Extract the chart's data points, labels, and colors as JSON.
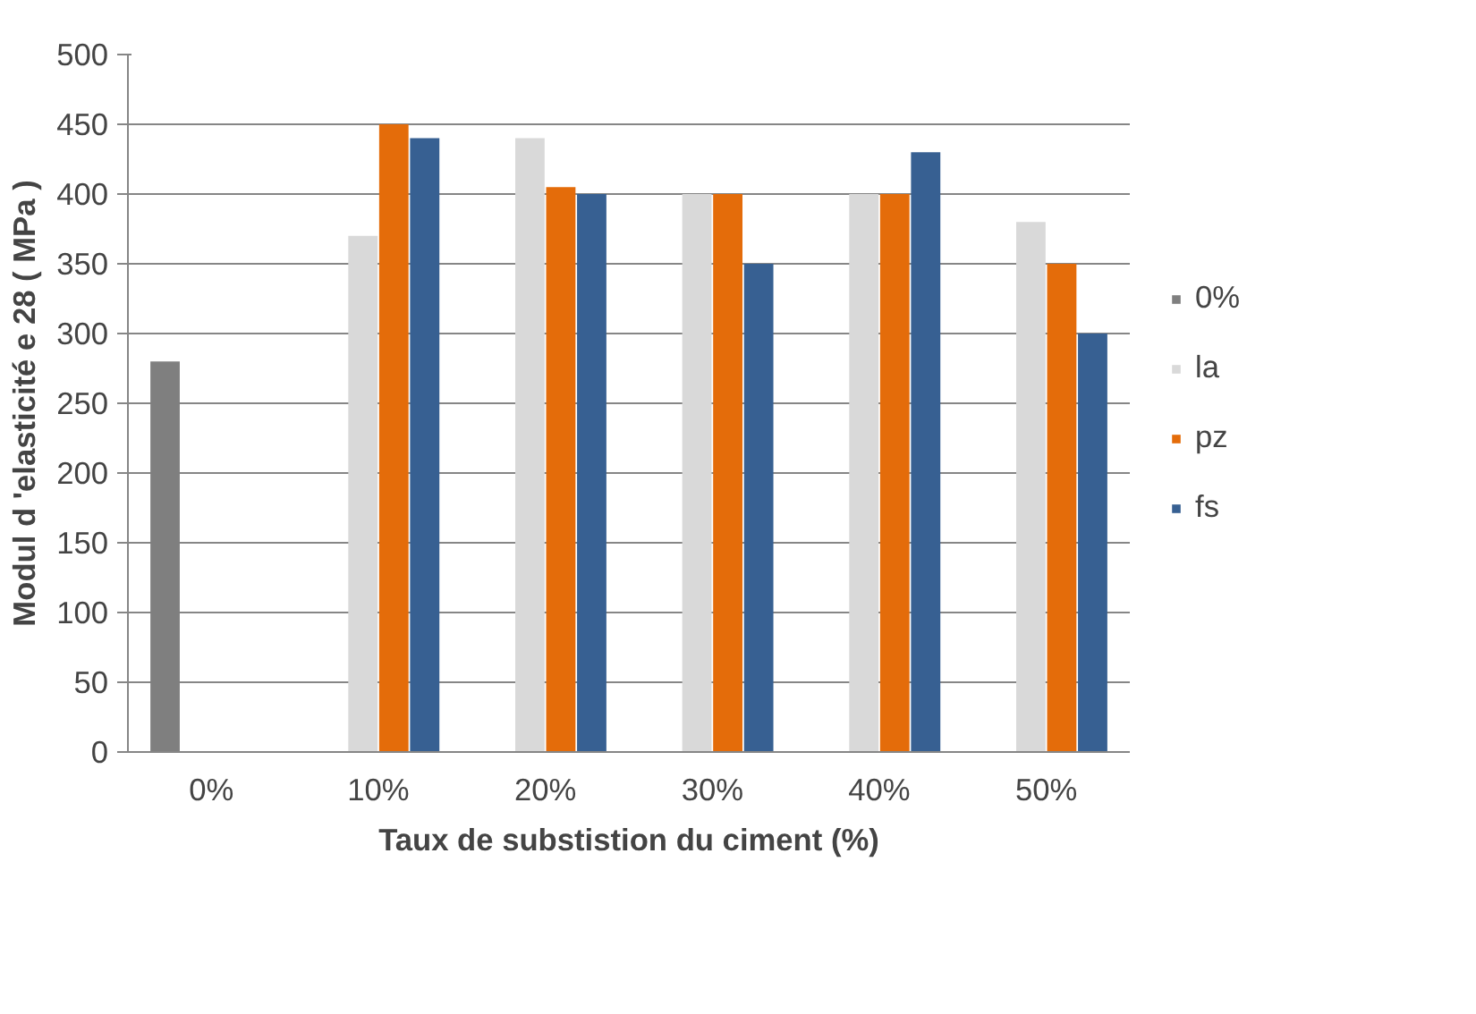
{
  "chart_data": {
    "type": "bar",
    "xlabel": "Taux de substistion du ciment (%)",
    "ylabel": "Modul d 'elasticité e 28 ( MPa )",
    "categories": [
      "0%",
      "10%",
      "20%",
      "30%",
      "40%",
      "50%"
    ],
    "series": [
      {
        "name": "0%",
        "color": "#7f7f7f",
        "values": [
          280,
          null,
          null,
          null,
          null,
          null
        ]
      },
      {
        "name": "la",
        "color": "#d9d9d9",
        "values": [
          null,
          370,
          440,
          400,
          400,
          380
        ]
      },
      {
        "name": "pz",
        "color": "#e46c0a",
        "values": [
          null,
          450,
          405,
          400,
          400,
          350
        ]
      },
      {
        "name": "fs",
        "color": "#376092",
        "values": [
          null,
          440,
          400,
          350,
          430,
          300
        ]
      }
    ],
    "ylim": [
      0,
      500
    ],
    "yticks": [
      0,
      50,
      100,
      150,
      200,
      250,
      300,
      350,
      400,
      450,
      500
    ],
    "grid": "y",
    "legend": "right"
  }
}
